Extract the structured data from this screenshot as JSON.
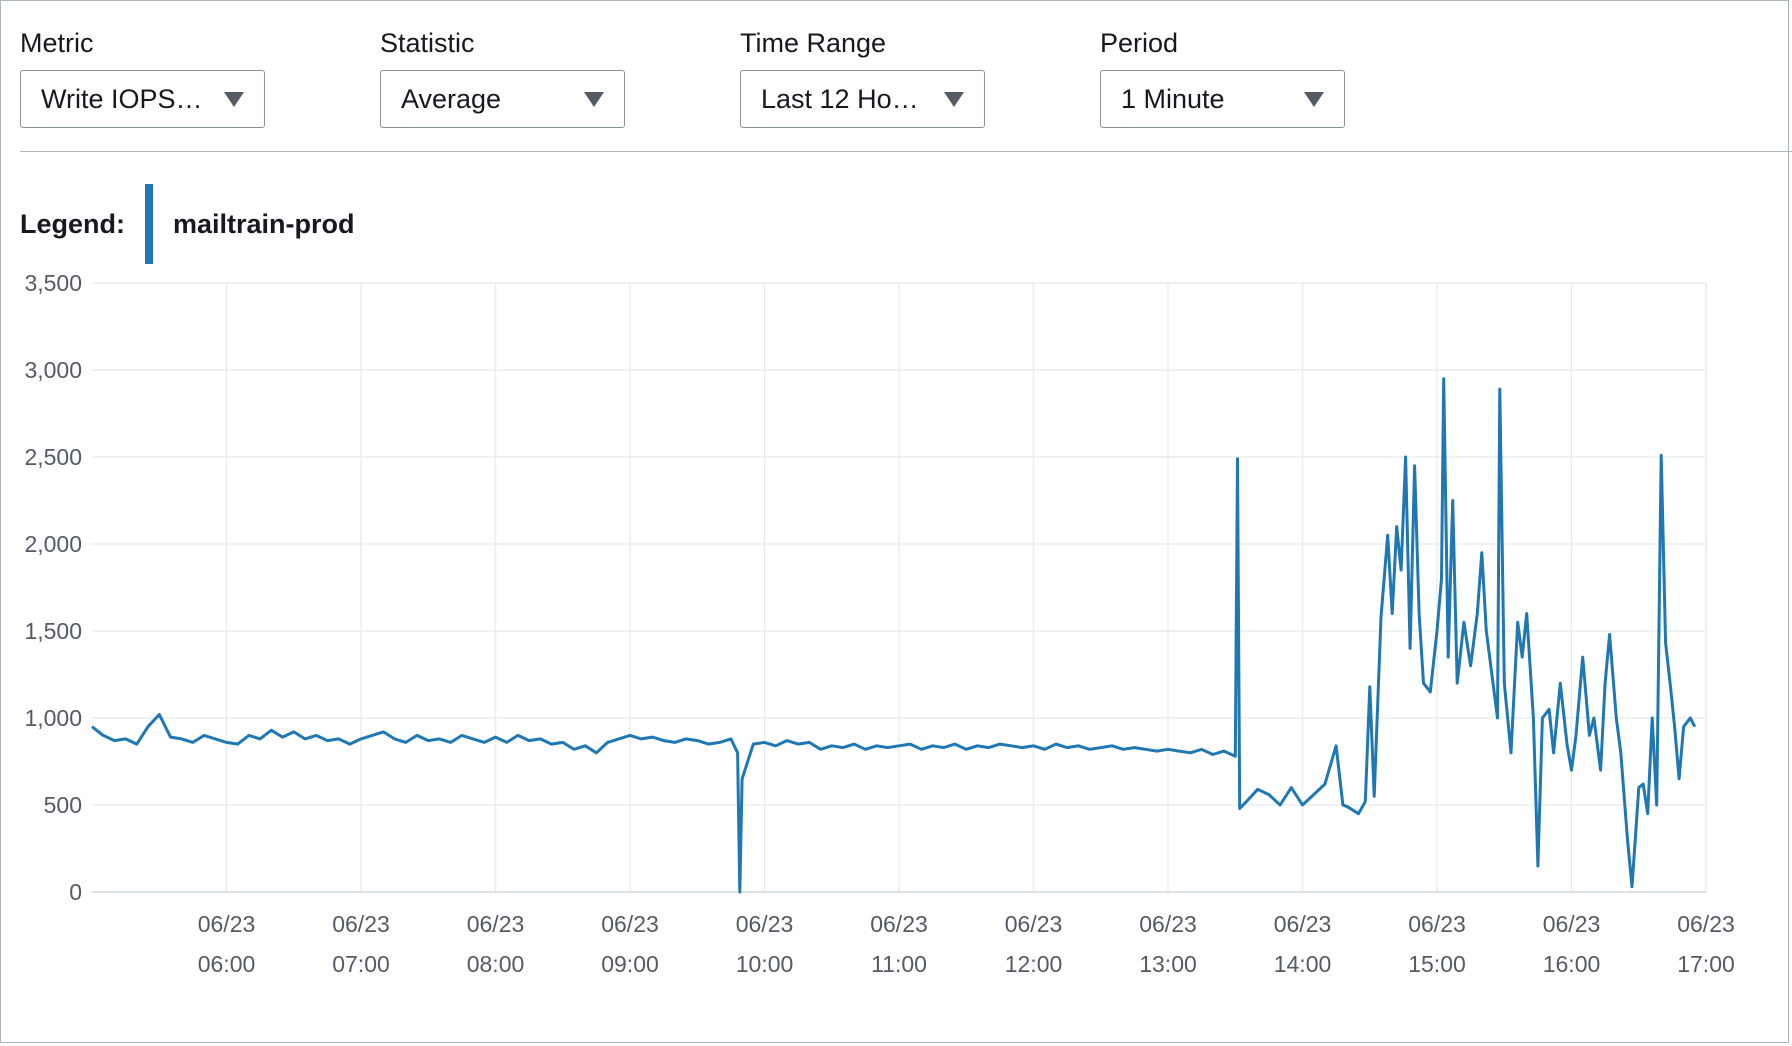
{
  "controls": {
    "metric": {
      "label": "Metric",
      "value": "Write IOPS…"
    },
    "statistic": {
      "label": "Statistic",
      "value": "Average"
    },
    "time_range": {
      "label": "Time Range",
      "value": "Last 12 Ho…"
    },
    "period": {
      "label": "Period",
      "value": "1 Minute"
    }
  },
  "legend": {
    "title": "Legend:",
    "series_name": "mailtrain-prod",
    "color": "#1f77b4"
  },
  "chart_data": {
    "type": "line",
    "title": "",
    "xlabel": "",
    "ylabel": "",
    "ylim": [
      0,
      3500
    ],
    "yticks": [
      0,
      500,
      1000,
      1500,
      2000,
      2500,
      3000,
      3500
    ],
    "ytick_labels": [
      "0",
      "500",
      "1,000",
      "1,500",
      "2,000",
      "2,500",
      "3,000",
      "3,500"
    ],
    "xlim": [
      "05:00",
      "17:00"
    ],
    "xtick_labels": [
      {
        "date": "06/23",
        "time": "06:00"
      },
      {
        "date": "06/23",
        "time": "07:00"
      },
      {
        "date": "06/23",
        "time": "08:00"
      },
      {
        "date": "06/23",
        "time": "09:00"
      },
      {
        "date": "06/23",
        "time": "10:00"
      },
      {
        "date": "06/23",
        "time": "11:00"
      },
      {
        "date": "06/23",
        "time": "12:00"
      },
      {
        "date": "06/23",
        "time": "13:00"
      },
      {
        "date": "06/23",
        "time": "14:00"
      },
      {
        "date": "06/23",
        "time": "15:00"
      },
      {
        "date": "06/23",
        "time": "16:00"
      },
      {
        "date": "06/23",
        "time": "17:00"
      }
    ],
    "grid": true,
    "legend_position": "top-left",
    "series": [
      {
        "name": "mailtrain-prod",
        "color": "#1f77b4",
        "points": [
          [
            "05:00",
            950
          ],
          [
            "05:05",
            900
          ],
          [
            "05:10",
            870
          ],
          [
            "05:15",
            880
          ],
          [
            "05:20",
            850
          ],
          [
            "05:25",
            950
          ],
          [
            "05:30",
            1020
          ],
          [
            "05:35",
            890
          ],
          [
            "05:40",
            880
          ],
          [
            "05:45",
            860
          ],
          [
            "05:50",
            900
          ],
          [
            "05:55",
            880
          ],
          [
            "06:00",
            860
          ],
          [
            "06:05",
            850
          ],
          [
            "06:10",
            900
          ],
          [
            "06:15",
            880
          ],
          [
            "06:20",
            930
          ],
          [
            "06:25",
            890
          ],
          [
            "06:30",
            920
          ],
          [
            "06:35",
            880
          ],
          [
            "06:40",
            900
          ],
          [
            "06:45",
            870
          ],
          [
            "06:50",
            880
          ],
          [
            "06:55",
            850
          ],
          [
            "07:00",
            880
          ],
          [
            "07:05",
            900
          ],
          [
            "07:10",
            920
          ],
          [
            "07:15",
            880
          ],
          [
            "07:20",
            860
          ],
          [
            "07:25",
            900
          ],
          [
            "07:30",
            870
          ],
          [
            "07:35",
            880
          ],
          [
            "07:40",
            860
          ],
          [
            "07:45",
            900
          ],
          [
            "07:50",
            880
          ],
          [
            "07:55",
            860
          ],
          [
            "08:00",
            890
          ],
          [
            "08:05",
            860
          ],
          [
            "08:10",
            900
          ],
          [
            "08:15",
            870
          ],
          [
            "08:20",
            880
          ],
          [
            "08:25",
            850
          ],
          [
            "08:30",
            860
          ],
          [
            "08:35",
            820
          ],
          [
            "08:40",
            840
          ],
          [
            "08:45",
            800
          ],
          [
            "08:50",
            860
          ],
          [
            "08:55",
            880
          ],
          [
            "09:00",
            900
          ],
          [
            "09:05",
            880
          ],
          [
            "09:10",
            890
          ],
          [
            "09:15",
            870
          ],
          [
            "09:20",
            860
          ],
          [
            "09:25",
            880
          ],
          [
            "09:30",
            870
          ],
          [
            "09:35",
            850
          ],
          [
            "09:40",
            860
          ],
          [
            "09:45",
            880
          ],
          [
            "09:48",
            800
          ],
          [
            "09:49",
            0
          ],
          [
            "09:50",
            650
          ],
          [
            "09:55",
            850
          ],
          [
            "10:00",
            860
          ],
          [
            "10:05",
            840
          ],
          [
            "10:10",
            870
          ],
          [
            "10:15",
            850
          ],
          [
            "10:20",
            860
          ],
          [
            "10:25",
            820
          ],
          [
            "10:30",
            840
          ],
          [
            "10:35",
            830
          ],
          [
            "10:40",
            850
          ],
          [
            "10:45",
            820
          ],
          [
            "10:50",
            840
          ],
          [
            "10:55",
            830
          ],
          [
            "11:00",
            840
          ],
          [
            "11:05",
            850
          ],
          [
            "11:10",
            820
          ],
          [
            "11:15",
            840
          ],
          [
            "11:20",
            830
          ],
          [
            "11:25",
            850
          ],
          [
            "11:30",
            820
          ],
          [
            "11:35",
            840
          ],
          [
            "11:40",
            830
          ],
          [
            "11:45",
            850
          ],
          [
            "11:50",
            840
          ],
          [
            "11:55",
            830
          ],
          [
            "12:00",
            840
          ],
          [
            "12:05",
            820
          ],
          [
            "12:10",
            850
          ],
          [
            "12:15",
            830
          ],
          [
            "12:20",
            840
          ],
          [
            "12:25",
            820
          ],
          [
            "12:30",
            830
          ],
          [
            "12:35",
            840
          ],
          [
            "12:40",
            820
          ],
          [
            "12:45",
            830
          ],
          [
            "12:50",
            820
          ],
          [
            "12:55",
            810
          ],
          [
            "13:00",
            820
          ],
          [
            "13:05",
            810
          ],
          [
            "13:10",
            800
          ],
          [
            "13:15",
            820
          ],
          [
            "13:20",
            790
          ],
          [
            "13:25",
            810
          ],
          [
            "13:30",
            780
          ],
          [
            "13:31",
            2490
          ],
          [
            "13:32",
            480
          ],
          [
            "13:35",
            520
          ],
          [
            "13:40",
            590
          ],
          [
            "13:45",
            560
          ],
          [
            "13:50",
            500
          ],
          [
            "13:55",
            600
          ],
          [
            "14:00",
            500
          ],
          [
            "14:05",
            560
          ],
          [
            "14:10",
            620
          ],
          [
            "14:15",
            840
          ],
          [
            "14:18",
            500
          ],
          [
            "14:20",
            490
          ],
          [
            "14:25",
            450
          ],
          [
            "14:28",
            520
          ],
          [
            "14:30",
            1180
          ],
          [
            "14:32",
            550
          ],
          [
            "14:35",
            1580
          ],
          [
            "14:38",
            2050
          ],
          [
            "14:40",
            1600
          ],
          [
            "14:42",
            2100
          ],
          [
            "14:44",
            1850
          ],
          [
            "14:46",
            2500
          ],
          [
            "14:48",
            1400
          ],
          [
            "14:50",
            2450
          ],
          [
            "14:52",
            1600
          ],
          [
            "14:54",
            1200
          ],
          [
            "14:57",
            1150
          ],
          [
            "15:00",
            1500
          ],
          [
            "15:02",
            1800
          ],
          [
            "15:03",
            2950
          ],
          [
            "15:05",
            1350
          ],
          [
            "15:07",
            2250
          ],
          [
            "15:09",
            1200
          ],
          [
            "15:12",
            1550
          ],
          [
            "15:15",
            1300
          ],
          [
            "15:18",
            1600
          ],
          [
            "15:20",
            1950
          ],
          [
            "15:22",
            1500
          ],
          [
            "15:25",
            1200
          ],
          [
            "15:27",
            1000
          ],
          [
            "15:28",
            2890
          ],
          [
            "15:30",
            1200
          ],
          [
            "15:33",
            800
          ],
          [
            "15:36",
            1550
          ],
          [
            "15:38",
            1350
          ],
          [
            "15:40",
            1600
          ],
          [
            "15:43",
            1000
          ],
          [
            "15:45",
            150
          ],
          [
            "15:47",
            1000
          ],
          [
            "15:50",
            1050
          ],
          [
            "15:52",
            800
          ],
          [
            "15:55",
            1200
          ],
          [
            "15:58",
            850
          ],
          [
            "16:00",
            700
          ],
          [
            "16:02",
            900
          ],
          [
            "16:05",
            1350
          ],
          [
            "16:08",
            900
          ],
          [
            "16:10",
            1000
          ],
          [
            "16:13",
            700
          ],
          [
            "16:15",
            1200
          ],
          [
            "16:17",
            1480
          ],
          [
            "16:20",
            1000
          ],
          [
            "16:22",
            800
          ],
          [
            "16:25",
            300
          ],
          [
            "16:27",
            30
          ],
          [
            "16:30",
            600
          ],
          [
            "16:32",
            620
          ],
          [
            "16:34",
            450
          ],
          [
            "16:36",
            1000
          ],
          [
            "16:38",
            500
          ],
          [
            "16:40",
            2510
          ],
          [
            "16:42",
            1430
          ],
          [
            "16:44",
            1200
          ],
          [
            "16:46",
            950
          ],
          [
            "16:48",
            650
          ],
          [
            "16:50",
            950
          ],
          [
            "16:53",
            1000
          ],
          [
            "16:55",
            950
          ]
        ]
      }
    ]
  }
}
